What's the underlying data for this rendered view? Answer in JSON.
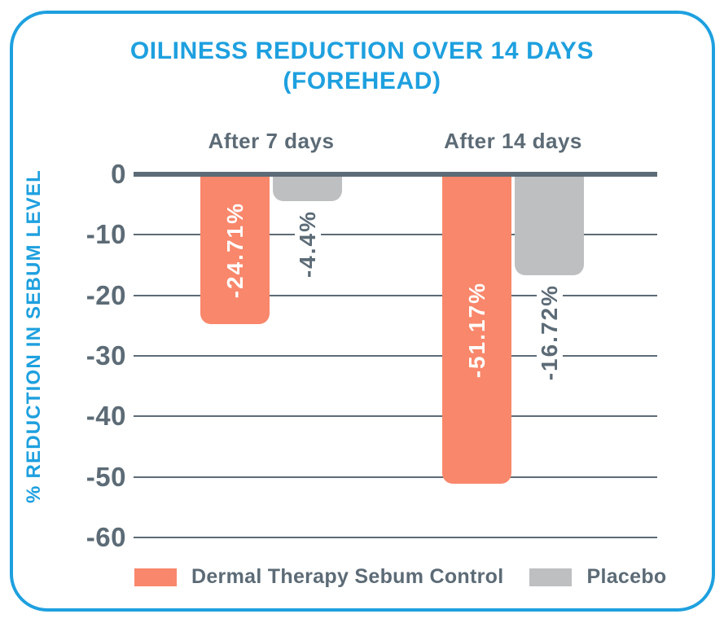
{
  "title": {
    "line1": "OILINESS REDUCTION OVER 14 DAYS",
    "line2": "(FOREHEAD)"
  },
  "colors": {
    "accent_blue": "#1EA0DF",
    "bar_orange": "#F9876B",
    "bar_gray": "#BDBFC1",
    "text_slate": "#5C6B76",
    "axis_line": "#5C6B76",
    "inside_label_white": "#FFFFFF"
  },
  "chart_data": {
    "type": "bar",
    "title": "OILINESS REDUCTION OVER 14 DAYS (FOREHEAD)",
    "categories": [
      "After 7 days",
      "After 14 days"
    ],
    "series": [
      {
        "name": "Dermal Therapy Sebum Control",
        "color": "#F9876B",
        "values": [
          -24.71,
          -51.17
        ],
        "data_labels": [
          "-24.71%",
          "-51.17%"
        ],
        "label_placement": "inside"
      },
      {
        "name": "Placebo",
        "color": "#BDBFC1",
        "values": [
          -4.4,
          -16.72
        ],
        "data_labels": [
          "-4.4%",
          "-16.72%"
        ],
        "label_placement": "outside"
      }
    ],
    "xlabel": "",
    "ylabel": "% REDUCTION IN SEBUM LEVEL",
    "yticks": [
      0,
      -10,
      -20,
      -30,
      -40,
      -50,
      -60
    ],
    "ylim": [
      0,
      -60
    ],
    "grid": true,
    "legend_position": "bottom"
  }
}
